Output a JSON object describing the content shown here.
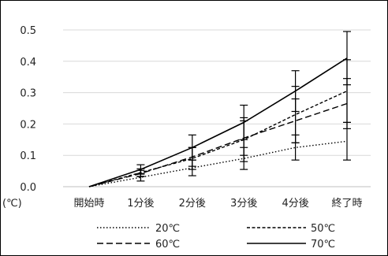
{
  "chart_data": {
    "type": "line",
    "categories": [
      "開始時",
      "1分後",
      "2分後",
      "3分後",
      "4分後",
      "終了時"
    ],
    "y_unit": "(℃)",
    "ylim": [
      0,
      0.5
    ],
    "y_ticks": [
      "0.0",
      "0.1",
      "0.2",
      "0.3",
      "0.4",
      "0.5"
    ],
    "grid": true,
    "legend_position": "bottom",
    "series": [
      {
        "name": "20℃",
        "line_style": "dotted",
        "values": [
          0,
          0.03,
          0.06,
          0.09,
          0.125,
          0.145
        ],
        "error": [
          0,
          0.012,
          0.025,
          0.035,
          0.04,
          0.06
        ]
      },
      {
        "name": "50℃",
        "line_style": "short-dash",
        "values": [
          0,
          0.045,
          0.09,
          0.15,
          0.23,
          0.305
        ],
        "error": [
          0,
          0.012,
          0.035,
          0.07,
          0.09,
          0.1
        ]
      },
      {
        "name": "60℃",
        "line_style": "long-dash",
        "values": [
          0,
          0.042,
          0.095,
          0.155,
          0.21,
          0.265
        ],
        "error": [
          0,
          0.01,
          0.03,
          0.055,
          0.07,
          0.08
        ]
      },
      {
        "name": "70℃",
        "line_style": "solid",
        "values": [
          0,
          0.055,
          0.125,
          0.205,
          0.305,
          0.41
        ],
        "error": [
          0,
          0.015,
          0.04,
          0.055,
          0.065,
          0.085
        ]
      }
    ]
  },
  "colors": {
    "line": "#000000",
    "grid": "#d9d9d9",
    "frame": "#000000"
  }
}
